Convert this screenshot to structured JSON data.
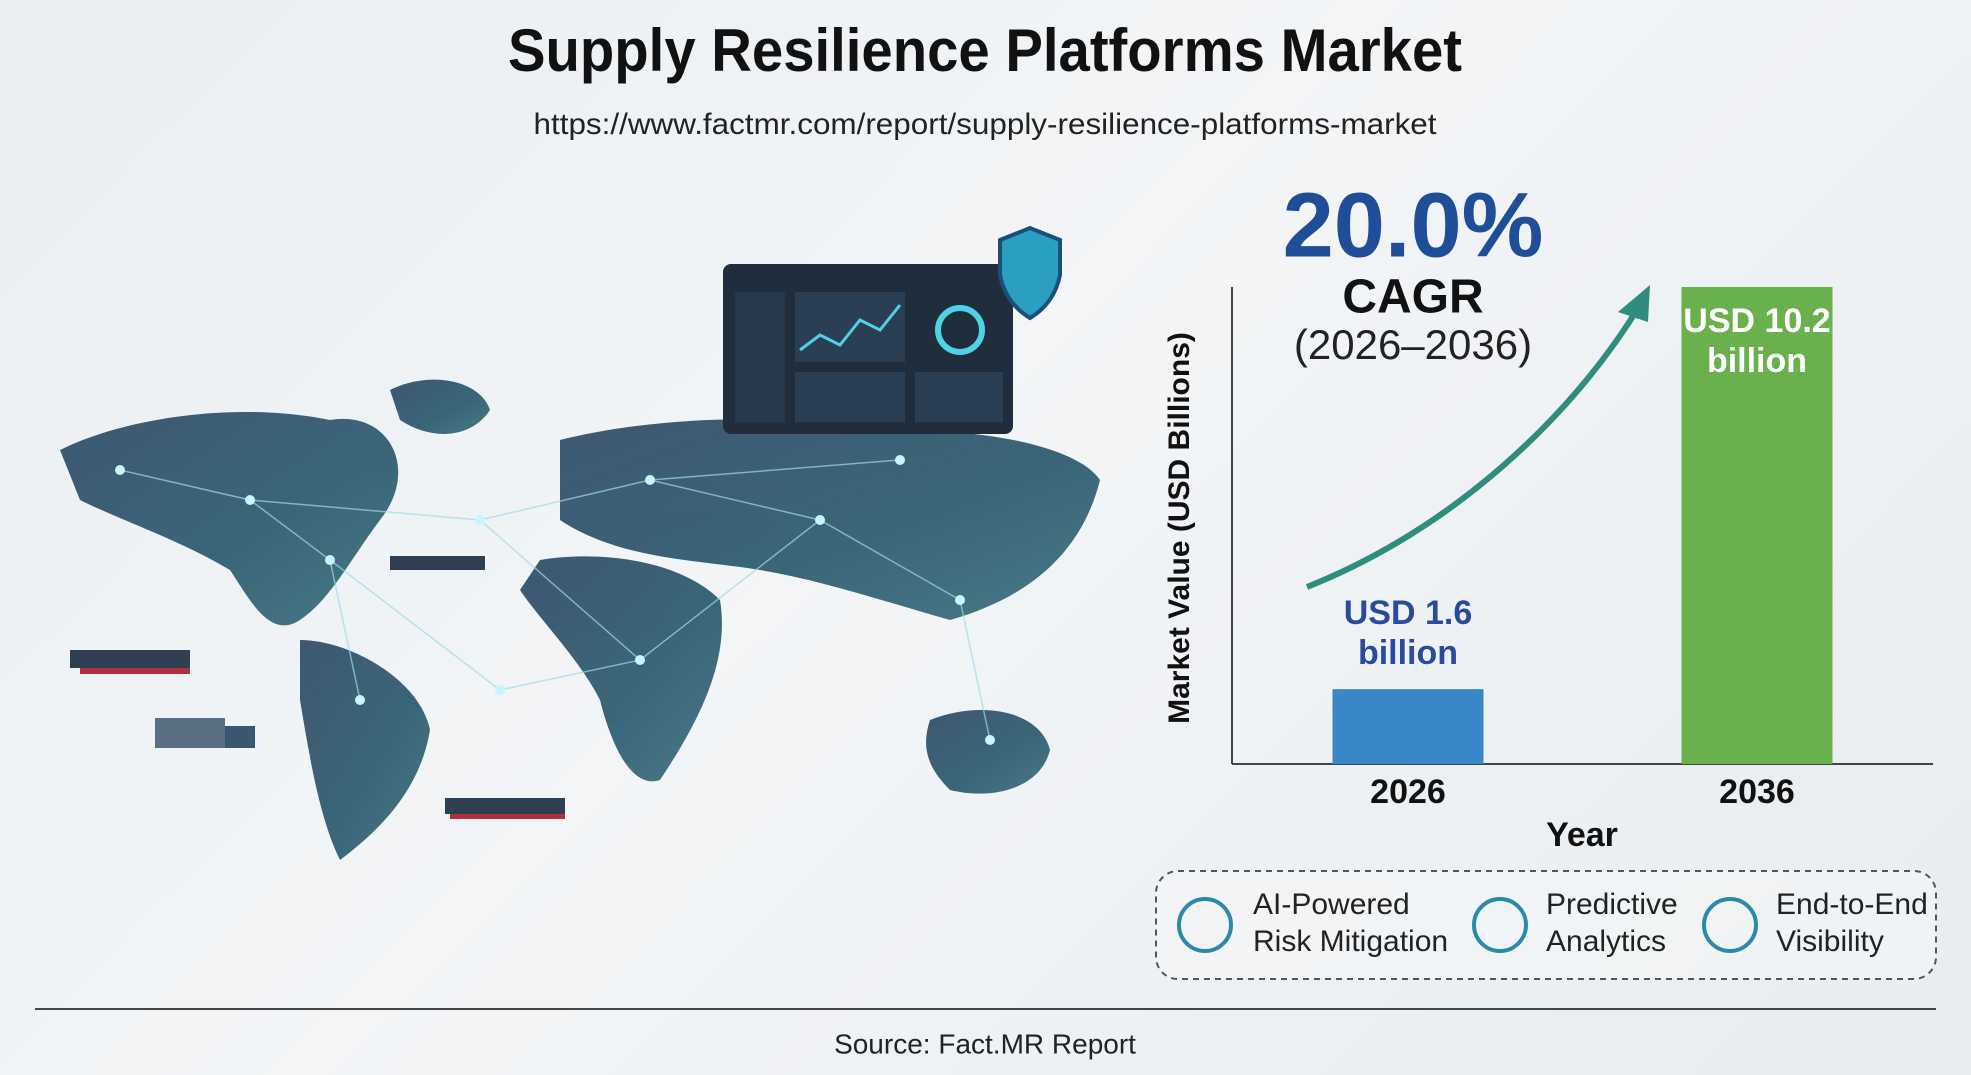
{
  "chart_data": {
    "type": "bar",
    "title": "Supply Resilience Platforms Market",
    "subtitle": "https://www.factmr.com/report/supply-resilience-platforms-market",
    "categories": [
      "2026",
      "2036"
    ],
    "values": [
      1.6,
      10.2
    ],
    "value_labels": [
      "USD 1.6 billion",
      "USD 10.2 billion"
    ],
    "colors": [
      "#3a87c8",
      "#6ab04c"
    ],
    "value_label_colors": [
      "#2a4b9b",
      "#ffffff"
    ],
    "ylim": [
      0,
      10.2
    ],
    "ylabel": "Market Value (USD Billions)",
    "xlabel": "Year"
  },
  "cagr": {
    "value": "20.0%",
    "label": "CAGR",
    "period": "(2026–2036)"
  },
  "features": [
    [
      "AI-Powered",
      "Risk Mitigation"
    ],
    [
      "Predictive",
      "Analytics"
    ],
    [
      "End-to-End",
      "Visibility"
    ]
  ],
  "source": "Source: Fact.MR Report"
}
